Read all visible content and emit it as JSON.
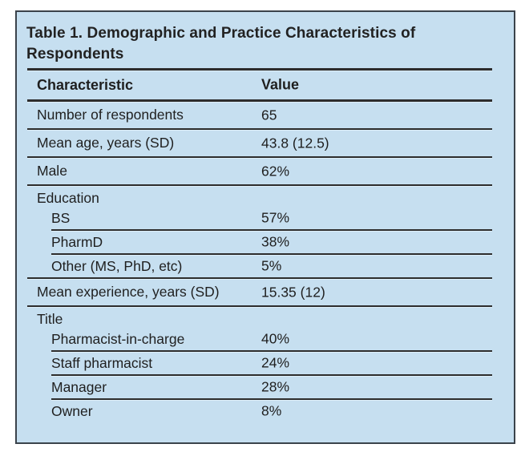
{
  "panel": {
    "title": "Table 1. Demographic and Practice Characteristics of Respondents",
    "columns": {
      "characteristic": "Characteristic",
      "value": "Value"
    },
    "rows": [
      {
        "label": "Number of respondents",
        "value": "65"
      },
      {
        "label": "Mean age, years (SD)",
        "value": "43.8 (12.5)"
      },
      {
        "label": "Male",
        "value": "62%"
      },
      {
        "group": "Education",
        "label": "BS",
        "value": "57%"
      },
      {
        "label": "PharmD",
        "value": "38%"
      },
      {
        "label": "Other (MS, PhD, etc)",
        "value": "5%"
      },
      {
        "label": "Mean experience, years (SD)",
        "value": "15.35 (12)"
      },
      {
        "group": "Title",
        "label": "Pharmacist-in-charge",
        "value": "40%"
      },
      {
        "label": "Staff pharmacist",
        "value": "24%"
      },
      {
        "label": "Manager",
        "value": "28%"
      },
      {
        "label": "Owner",
        "value": "8%"
      }
    ],
    "colors": {
      "panel_bg": "#c6dff0",
      "panel_border": "#3b434b",
      "rule": "#2d2d2d",
      "text": "#1f1f1f"
    }
  }
}
